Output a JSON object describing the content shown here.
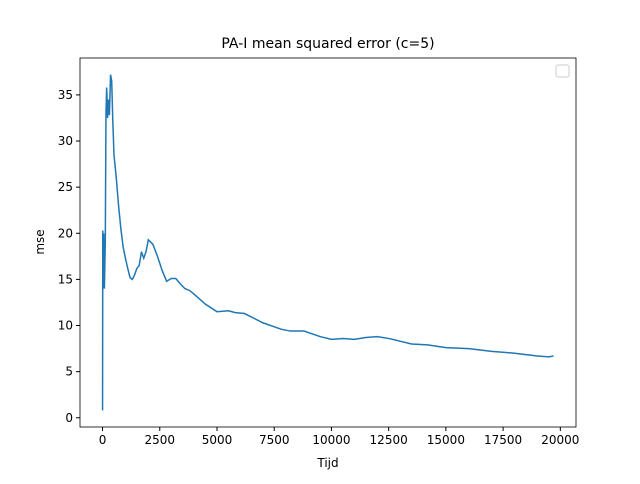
{
  "chart_data": {
    "type": "line",
    "title": "PA-I mean squared error (c=5)",
    "x_label": "Tijd",
    "y_label": "mse",
    "x": [
      0,
      10,
      30,
      50,
      80,
      120,
      150,
      180,
      220,
      260,
      300,
      350,
      400,
      450,
      500,
      600,
      700,
      800,
      900,
      1000,
      1100,
      1200,
      1300,
      1400,
      1500,
      1600,
      1700,
      1800,
      1900,
      2000,
      2200,
      2400,
      2600,
      2800,
      3000,
      3200,
      3400,
      3600,
      3800,
      4000,
      4500,
      5000,
      5500,
      5800,
      6200,
      7000,
      7800,
      8200,
      8800,
      9500,
      10000,
      10500,
      11000,
      11500,
      12000,
      12500,
      13500,
      14200,
      15000,
      16000,
      17000,
      18000,
      19000,
      19500,
      19700
    ],
    "series": [
      {
        "color": "#1f77b4",
        "values": [
          0.8,
          20.3,
          14,
          20,
          14,
          19,
          33,
          35.8,
          32.5,
          34.5,
          32.8,
          37.2,
          36.5,
          32,
          28.5,
          26,
          23,
          20.5,
          18.5,
          17.3,
          16.2,
          15.2,
          15,
          15.5,
          16.2,
          16.5,
          18,
          17.3,
          18,
          19.3,
          18.8,
          17.5,
          16,
          14.8,
          15.1,
          15.1,
          14.5,
          14,
          13.8,
          13.4,
          12.3,
          11.5,
          11.6,
          11.4,
          11.3,
          10.3,
          9.6,
          9.4,
          9.4,
          8.8,
          8.5,
          8.6,
          8.5,
          8.7,
          8.8,
          8.6,
          8.0,
          7.9,
          7.6,
          7.5,
          7.2,
          7.0,
          6.7,
          6.6,
          6.7
        ]
      }
    ],
    "xlim": [
      -985,
      20685
    ],
    "ylim": [
      -1.0,
      39.0
    ],
    "xticks": [
      0,
      2500,
      5000,
      7500,
      10000,
      12500,
      15000,
      17500,
      20000
    ],
    "yticks": [
      0,
      5,
      10,
      15,
      20,
      25,
      30,
      35
    ],
    "grid": false,
    "legend": "upper right"
  }
}
